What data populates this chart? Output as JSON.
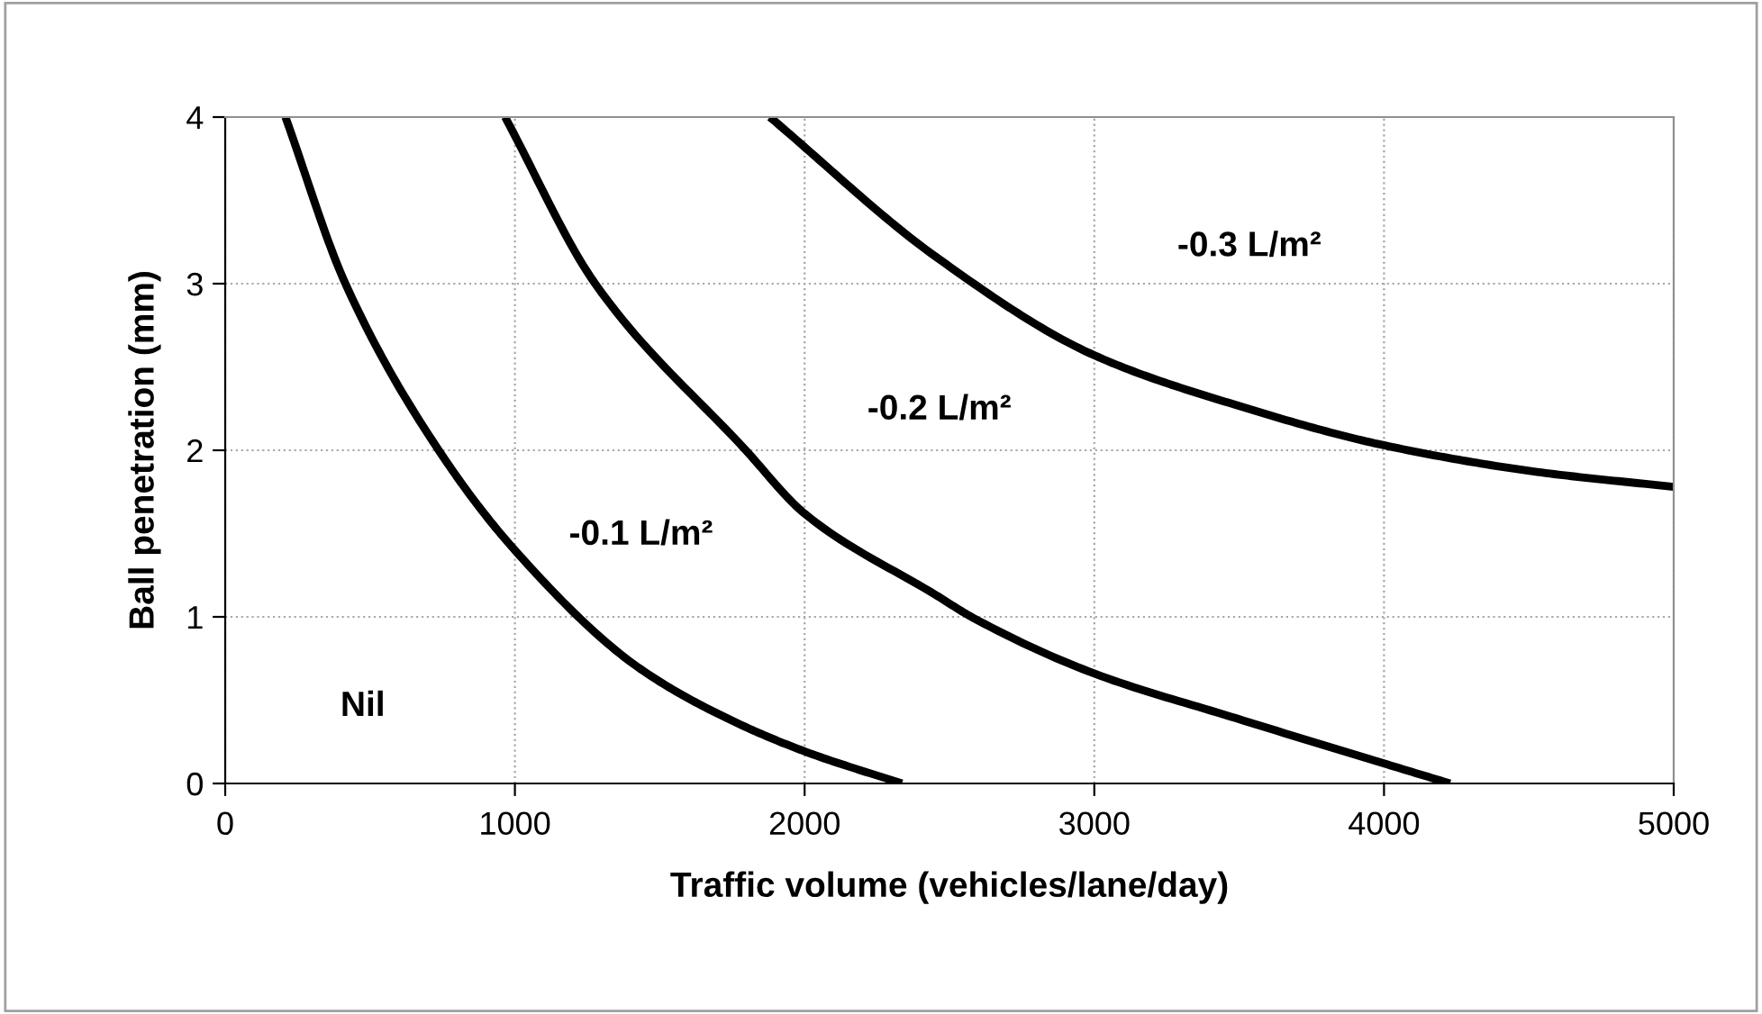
{
  "chart_data": {
    "type": "line",
    "xlabel": "Traffic volume (vehicles/lane/day)",
    "ylabel": "Ball penetration (mm)",
    "xlim": [
      0,
      5000
    ],
    "ylim": [
      0,
      4
    ],
    "xticks": [
      0,
      1000,
      2000,
      3000,
      4000,
      5000
    ],
    "yticks": [
      0,
      1,
      2,
      3,
      4
    ],
    "grid": true,
    "marker": "none",
    "line_style": "solid",
    "series": [
      {
        "color": "#000000",
        "x": [
          208,
          415,
          737,
          1000,
          1423,
          1734,
          2004,
          2336
        ],
        "values": [
          4,
          3,
          2,
          1.4,
          0.7,
          0.39,
          0.19,
          0
        ]
      },
      {
        "color": "#000000",
        "x": [
          966,
          1277,
          1797,
          2000,
          2454,
          2586,
          3000,
          3492,
          4000,
          4228
        ],
        "values": [
          4,
          3,
          2,
          1.62,
          1.13,
          0.99,
          0.66,
          0.39,
          0.12,
          0
        ]
      },
      {
        "color": "#000000",
        "x": [
          1880,
          2454,
          3000,
          3492,
          4000,
          4529,
          5000
        ],
        "values": [
          4,
          3.16,
          2.57,
          2.27,
          2.03,
          1.87,
          1.78
        ]
      }
    ],
    "annotations": [
      "Nil",
      "-0.1 L/m²",
      "-0.2 L/m²",
      "-0.3 L/m²"
    ]
  }
}
